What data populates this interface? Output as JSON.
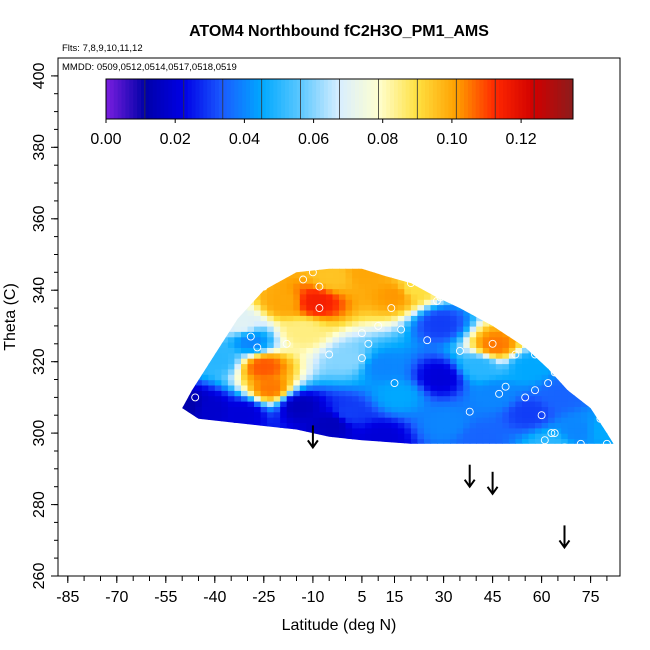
{
  "chart_data": {
    "type": "heatmap",
    "title": "ATOM4 Northbound fC2H3O_PM1_AMS",
    "flights_note": "Flts: 7,8,9,10,11,12",
    "dates_note": "MMDD: 0509,0512,0514,0517,0518,0519",
    "xlabel": "Latitude (deg N)",
    "ylabel": "Theta (C)",
    "xlim": [
      -88,
      84
    ],
    "ylim": [
      260,
      405
    ],
    "x_ticks": [
      -85,
      -70,
      -55,
      -40,
      -25,
      -10,
      5,
      15,
      30,
      45,
      60,
      75
    ],
    "y_ticks": [
      260,
      280,
      300,
      320,
      340,
      360,
      380,
      400
    ],
    "colorbar": {
      "range": [
        0,
        0.135
      ],
      "ticks": [
        0.0,
        0.02,
        0.04,
        0.06,
        0.08,
        0.1,
        0.12
      ],
      "tick_labels": [
        "0.00",
        "0.02",
        "0.04",
        "0.06",
        "0.08",
        "0.10",
        "0.12"
      ],
      "colors": [
        "#7b1fe0",
        "#0000a8",
        "#0000e6",
        "#1a5cff",
        "#00a8ff",
        "#5cc8ff",
        "#d8eeff",
        "#ffffd0",
        "#ffe040",
        "#ffa000",
        "#ff2800",
        "#d00000",
        "#8c1c1c"
      ]
    },
    "field_boundary": {
      "top": [
        [
          -50,
          307
        ],
        [
          -47,
          312
        ],
        [
          -40,
          322
        ],
        [
          -33,
          332
        ],
        [
          -25,
          340
        ],
        [
          -15,
          345
        ],
        [
          -5,
          346
        ],
        [
          5,
          346
        ],
        [
          12,
          344
        ],
        [
          20,
          342
        ],
        [
          28,
          338
        ],
        [
          35,
          335
        ],
        [
          45,
          330
        ],
        [
          55,
          324
        ],
        [
          62,
          318
        ],
        [
          68,
          312
        ],
        [
          75,
          307
        ],
        [
          80,
          300
        ],
        [
          82,
          297
        ]
      ],
      "bottom": [
        [
          -50,
          307
        ],
        [
          -45,
          304
        ],
        [
          -35,
          303
        ],
        [
          -25,
          302
        ],
        [
          -15,
          301
        ],
        [
          -5,
          299
        ],
        [
          5,
          298
        ],
        [
          20,
          297
        ],
        [
          35,
          297
        ],
        [
          50,
          297
        ],
        [
          60,
          297
        ],
        [
          70,
          297
        ],
        [
          82,
          297
        ]
      ]
    },
    "field_cells": [
      {
        "lat": -50,
        "theta": 307,
        "value": 0.012
      },
      {
        "lat": -42,
        "theta": 306,
        "value": 0.018
      },
      {
        "lat": -40,
        "theta": 320,
        "value": 0.05
      },
      {
        "lat": -33,
        "theta": 330,
        "value": 0.07
      },
      {
        "lat": -26,
        "theta": 318,
        "value": 0.108
      },
      {
        "lat": -24,
        "theta": 312,
        "value": 0.105
      },
      {
        "lat": -30,
        "theta": 325,
        "value": 0.04
      },
      {
        "lat": -20,
        "theta": 336,
        "value": 0.1
      },
      {
        "lat": -14,
        "theta": 328,
        "value": 0.085
      },
      {
        "lat": -10,
        "theta": 336,
        "value": 0.115
      },
      {
        "lat": -5,
        "theta": 343,
        "value": 0.095
      },
      {
        "lat": 5,
        "theta": 344,
        "value": 0.1
      },
      {
        "lat": 14,
        "theta": 338,
        "value": 0.102
      },
      {
        "lat": 20,
        "theta": 340,
        "value": 0.09
      },
      {
        "lat": 0,
        "theta": 320,
        "value": 0.06
      },
      {
        "lat": 0,
        "theta": 305,
        "value": 0.03
      },
      {
        "lat": -15,
        "theta": 307,
        "value": 0.015
      },
      {
        "lat": -32,
        "theta": 305,
        "value": 0.02
      },
      {
        "lat": 10,
        "theta": 318,
        "value": 0.04
      },
      {
        "lat": 15,
        "theta": 310,
        "value": 0.045
      },
      {
        "lat": 28,
        "theta": 315,
        "value": 0.02
      },
      {
        "lat": 28,
        "theta": 330,
        "value": 0.03
      },
      {
        "lat": 30,
        "theta": 302,
        "value": 0.04
      },
      {
        "lat": 40,
        "theta": 318,
        "value": 0.05
      },
      {
        "lat": 45,
        "theta": 324,
        "value": 0.105
      },
      {
        "lat": 45,
        "theta": 310,
        "value": 0.04
      },
      {
        "lat": 55,
        "theta": 318,
        "value": 0.045
      },
      {
        "lat": 55,
        "theta": 305,
        "value": 0.03
      },
      {
        "lat": 65,
        "theta": 310,
        "value": 0.035
      },
      {
        "lat": 70,
        "theta": 300,
        "value": 0.04
      },
      {
        "lat": 78,
        "theta": 300,
        "value": 0.045
      },
      {
        "lat": 62,
        "theta": 296,
        "value": 0.05
      },
      {
        "lat": 40,
        "theta": 298,
        "value": 0.035
      },
      {
        "lat": 10,
        "theta": 298,
        "value": 0.02
      },
      {
        "lat": -5,
        "theta": 302,
        "value": 0.015
      }
    ],
    "sample_points": [
      [
        -46,
        310
      ],
      [
        -29,
        327
      ],
      [
        -27,
        324
      ],
      [
        -25,
        341
      ],
      [
        -22,
        346
      ],
      [
        -18,
        325
      ],
      [
        -13,
        343
      ],
      [
        -10,
        345
      ],
      [
        -8,
        341
      ],
      [
        -8,
        335
      ],
      [
        -5,
        322
      ],
      [
        5,
        328
      ],
      [
        5,
        321
      ],
      [
        7,
        325
      ],
      [
        10,
        346
      ],
      [
        10,
        330
      ],
      [
        14,
        335
      ],
      [
        15,
        314
      ],
      [
        17,
        329
      ],
      [
        20,
        342
      ],
      [
        25,
        326
      ],
      [
        28,
        337
      ],
      [
        29,
        338
      ],
      [
        35,
        323
      ],
      [
        38,
        306
      ],
      [
        45,
        325
      ],
      [
        47,
        311
      ],
      [
        49,
        313
      ],
      [
        52,
        322
      ],
      [
        55,
        310
      ],
      [
        58,
        312
      ],
      [
        58,
        322
      ],
      [
        60,
        305
      ],
      [
        61,
        298
      ],
      [
        62,
        314
      ],
      [
        63,
        300
      ],
      [
        62,
        295
      ],
      [
        64,
        317
      ],
      [
        64,
        300
      ],
      [
        67,
        296
      ],
      [
        72,
        297
      ],
      [
        78,
        304
      ],
      [
        80,
        297
      ]
    ],
    "arrows": [
      {
        "lat": -10,
        "theta": 296
      },
      {
        "lat": 38,
        "theta": 285
      },
      {
        "lat": 45,
        "theta": 283
      },
      {
        "lat": 67,
        "theta": 268
      }
    ]
  }
}
